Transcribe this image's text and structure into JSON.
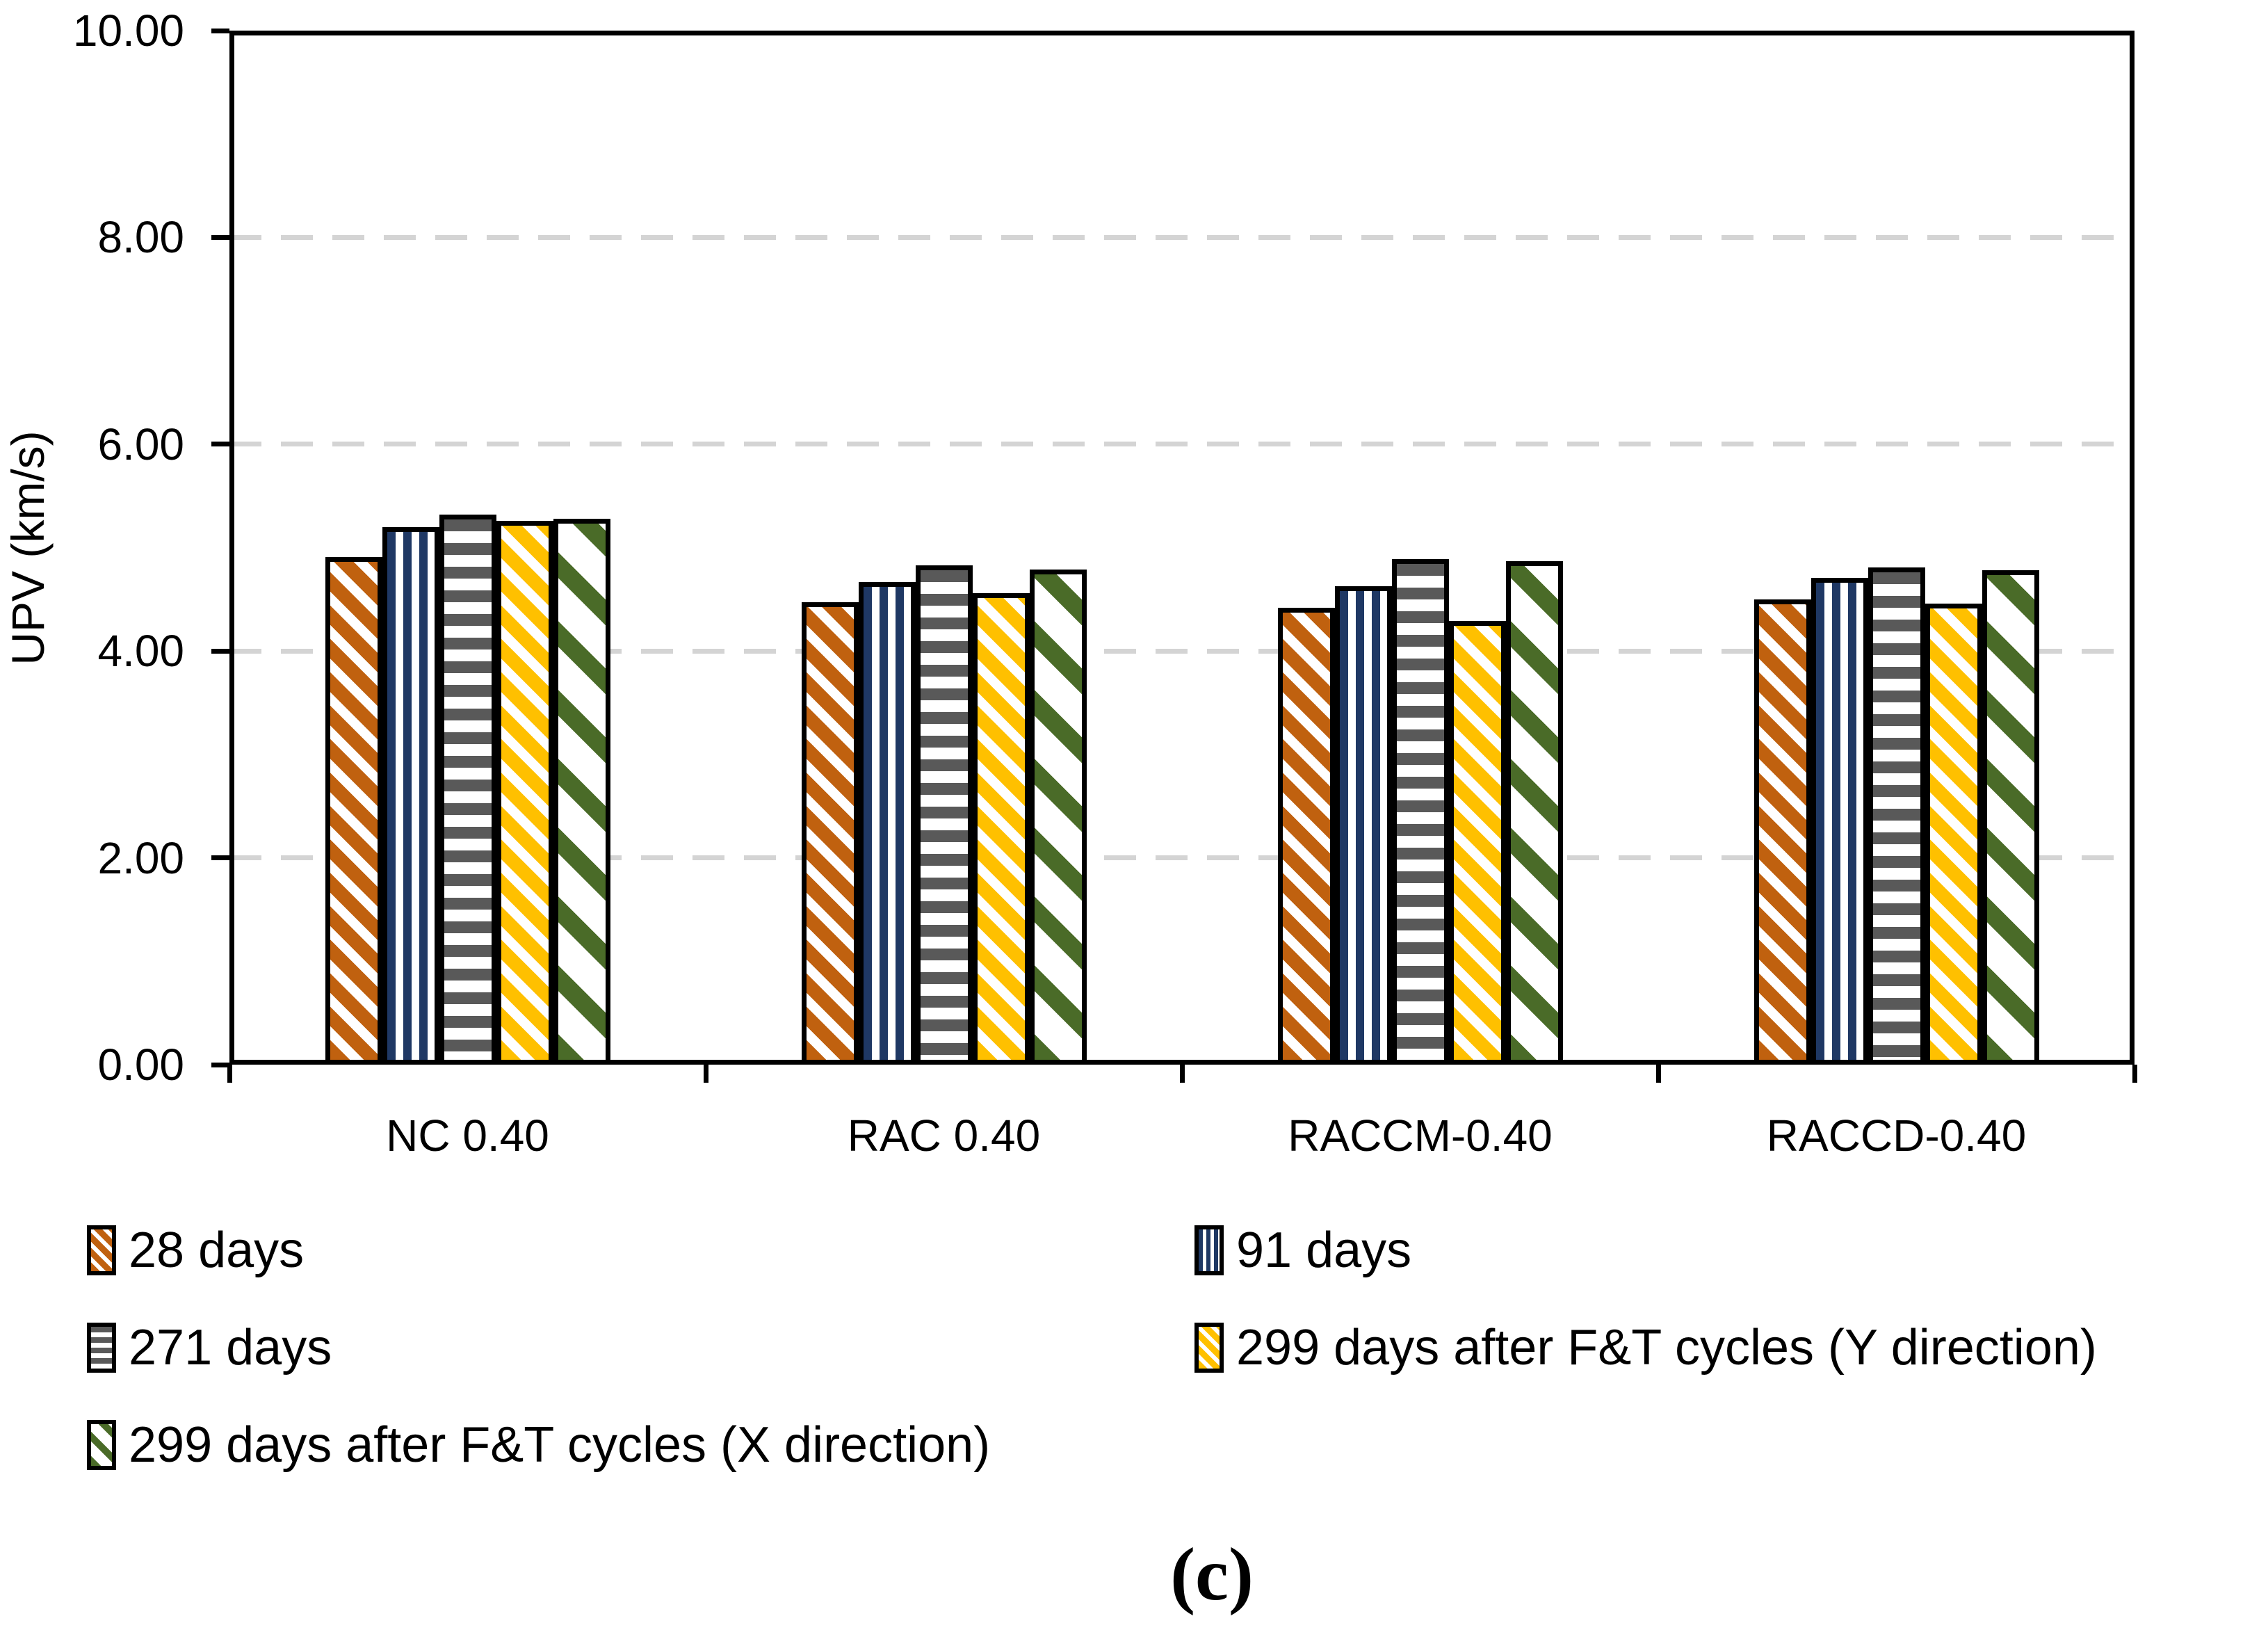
{
  "caption": {
    "text": "(c)"
  },
  "chart_data": {
    "type": "bar",
    "title": "",
    "xlabel": "",
    "ylabel": "UPV (km/s)",
    "ylim": [
      0,
      10
    ],
    "grid": true,
    "grid_style": "dashed-horizontal",
    "grid_color": "#d4d4d4",
    "legend_position": "bottom-two-columns",
    "categories": [
      "NC 0.40",
      "RAC 0.40",
      "RACCM-0.40",
      "RACCD-0.40"
    ],
    "y_ticks": [
      {
        "value": 0,
        "label": "0.00"
      },
      {
        "value": 2,
        "label": "2.00"
      },
      {
        "value": 4,
        "label": "4.00"
      },
      {
        "value": 6,
        "label": "6.00"
      },
      {
        "value": 8,
        "label": "8.00"
      },
      {
        "value": 10,
        "label": "10.00"
      }
    ],
    "grid_values": [
      2,
      4,
      6,
      8
    ],
    "series": [
      {
        "name": "28 days",
        "color": "#C0610F",
        "pattern": "diagonal",
        "values": [
          4.91,
          4.47,
          4.42,
          4.5
        ]
      },
      {
        "name": "91 days",
        "color": "#1F3864",
        "pattern": "vertical",
        "values": [
          5.2,
          4.67,
          4.63,
          4.71
        ]
      },
      {
        "name": "271 days",
        "color": "#595959",
        "pattern": "horizontal",
        "values": [
          5.32,
          4.83,
          4.89,
          4.81
        ]
      },
      {
        "name": "299 days after F&T cycles (Y direction)",
        "color": "#FFC000",
        "pattern": "diagonal",
        "values": [
          5.26,
          4.56,
          4.29,
          4.46
        ]
      },
      {
        "name": "299 days after F&T cycles (X direction)",
        "color": "#4A6B28",
        "pattern": "diagonal-wide",
        "values": [
          5.28,
          4.79,
          4.87,
          4.78
        ]
      }
    ]
  }
}
